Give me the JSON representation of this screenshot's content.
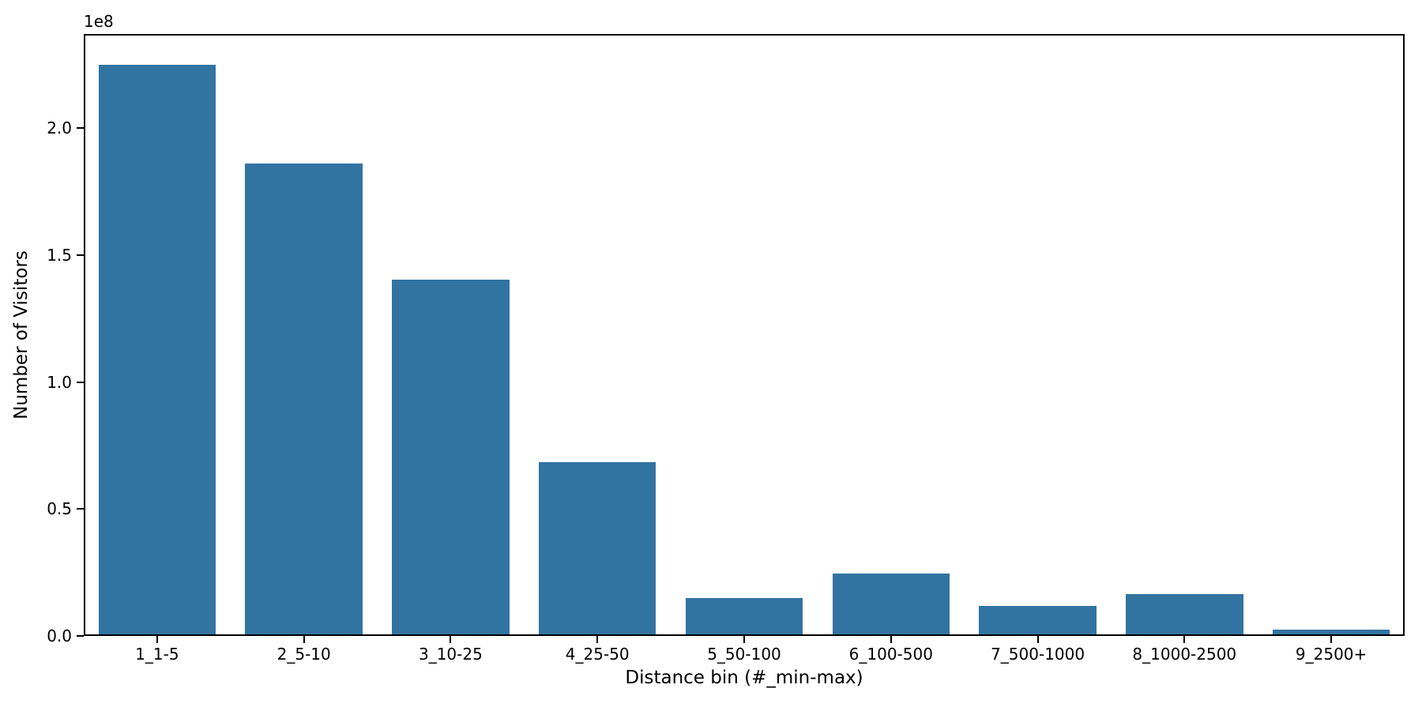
{
  "chart_data": {
    "type": "bar",
    "title": "",
    "xlabel": "Distance bin (#_min-max)",
    "ylabel": "Number of Visitors",
    "y_axis_offset_text": "1e8",
    "categories": [
      "1_1-5",
      "2_5-10",
      "3_10-25",
      "4_25-50",
      "5_50-100",
      "6_100-500",
      "7_500-1000",
      "8_1000-2500",
      "9_2500+"
    ],
    "values_e8": [
      2.25,
      1.86,
      1.4,
      0.68,
      0.143,
      0.239,
      0.112,
      0.158,
      0.018
    ],
    "values_visitors": [
      225000000,
      186000000,
      140000000,
      68000000,
      14300000,
      23900000,
      11200000,
      15800000,
      1800000
    ],
    "y_ticks": [
      "0.0",
      "0.5",
      "1.0",
      "1.5",
      "2.0"
    ],
    "y_tick_values_e8": [
      0.0,
      0.5,
      1.0,
      1.5,
      2.0
    ],
    "ylim_e8": [
      0,
      2.37
    ],
    "bar_color": "#3274a1",
    "bar_width_fraction": 0.8,
    "grid": false,
    "legend_position": "none",
    "axis_color": "#000000",
    "text_color": "#000000",
    "background_color": "#ffffff"
  }
}
